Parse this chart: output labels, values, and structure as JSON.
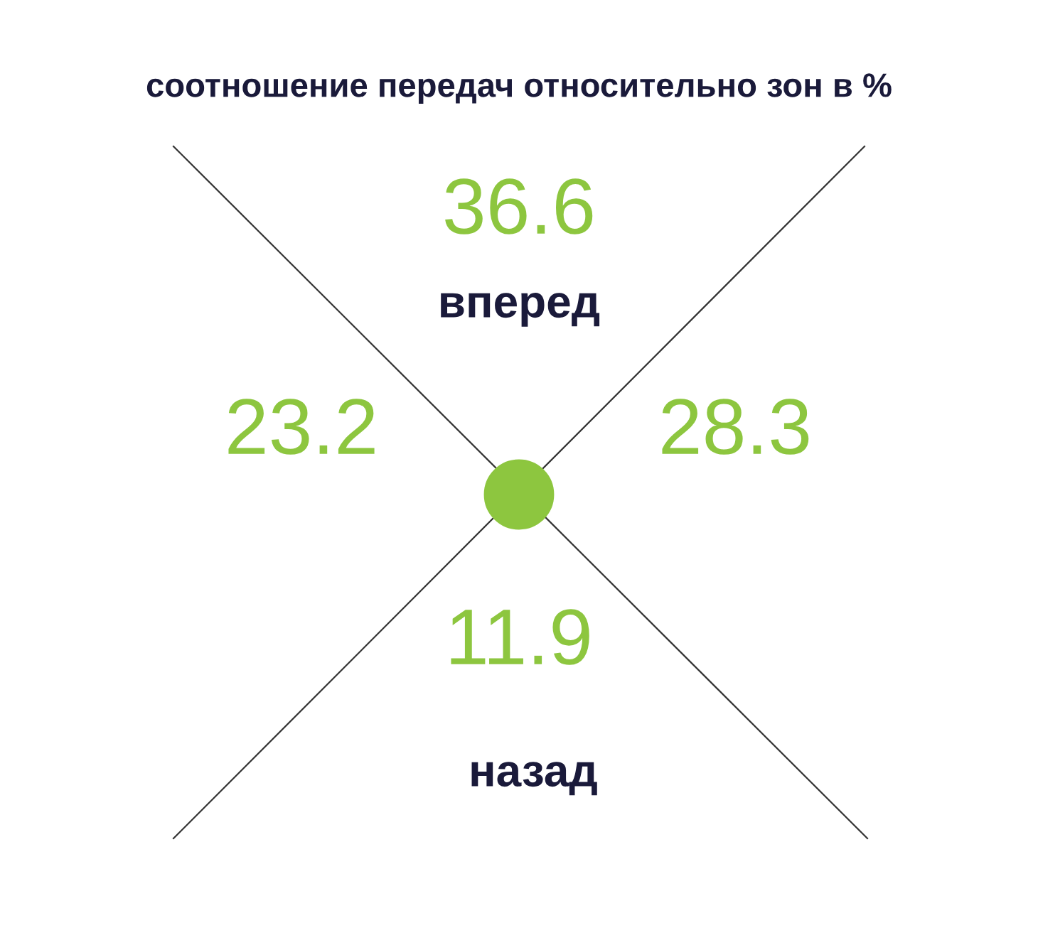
{
  "chart_data": {
    "type": "other",
    "title": "соотношение передач относительно зон в %",
    "categories": [
      "вперед",
      null,
      null,
      "назад"
    ],
    "values": [
      36.6,
      23.2,
      28.3,
      11.9
    ],
    "color": "#8dc63f",
    "data_labels": true
  }
}
